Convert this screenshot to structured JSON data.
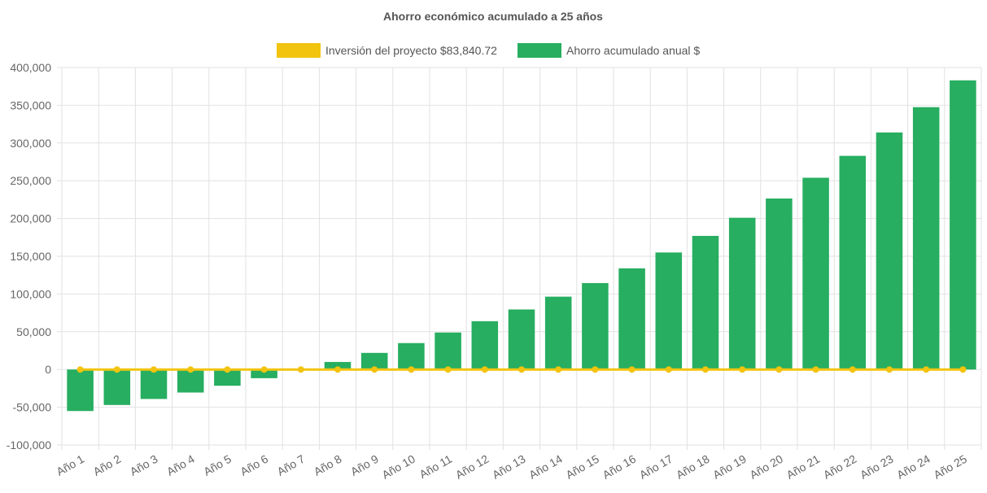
{
  "chart_data": {
    "type": "bar",
    "title": "Ahorro económico acumulado a 25 años",
    "categories": [
      "Año 1",
      "Año 2",
      "Año 3",
      "Año 4",
      "Año 5",
      "Año 6",
      "Año 7",
      "Año 8",
      "Año 9",
      "Año 10",
      "Año 11",
      "Año 12",
      "Año 13",
      "Año 14",
      "Año 15",
      "Año 16",
      "Año 17",
      "Año 18",
      "Año 19",
      "Año 20",
      "Año 21",
      "Año 22",
      "Año 23",
      "Año 24",
      "Año 25"
    ],
    "series": [
      {
        "name": "Inversión del proyecto $83,840.72",
        "type": "line",
        "color": "#f2c40f",
        "values": [
          0,
          0,
          0,
          0,
          0,
          0,
          0,
          0,
          0,
          0,
          0,
          0,
          0,
          0,
          0,
          0,
          0,
          0,
          0,
          0,
          0,
          0,
          0,
          0,
          0
        ]
      },
      {
        "name": "Ahorro acumulado anual $",
        "type": "bar",
        "color": "#27ae60",
        "values": [
          -55000,
          -47000,
          -39000,
          -30500,
          -21500,
          -11500,
          0,
          10000,
          22000,
          35000,
          49000,
          64000,
          79500,
          96500,
          114500,
          134000,
          155000,
          177000,
          201000,
          226500,
          254000,
          283000,
          314000,
          347500,
          383000
        ]
      }
    ],
    "ylim": [
      -100000,
      400000
    ],
    "yticks": [
      "400,000",
      "350,000",
      "300,000",
      "250,000",
      "200,000",
      "150,000",
      "100,000",
      "50,000",
      "0",
      "-50,000",
      "-100,000"
    ],
    "grid": true,
    "legend_position": "top-center"
  }
}
